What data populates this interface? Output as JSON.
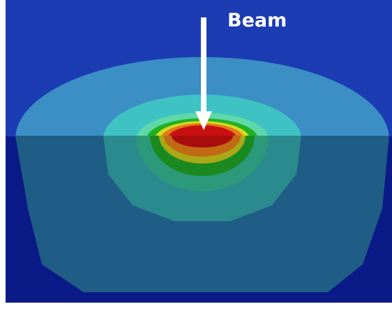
{
  "labels": {
    "beam": "Beam"
  }
}
